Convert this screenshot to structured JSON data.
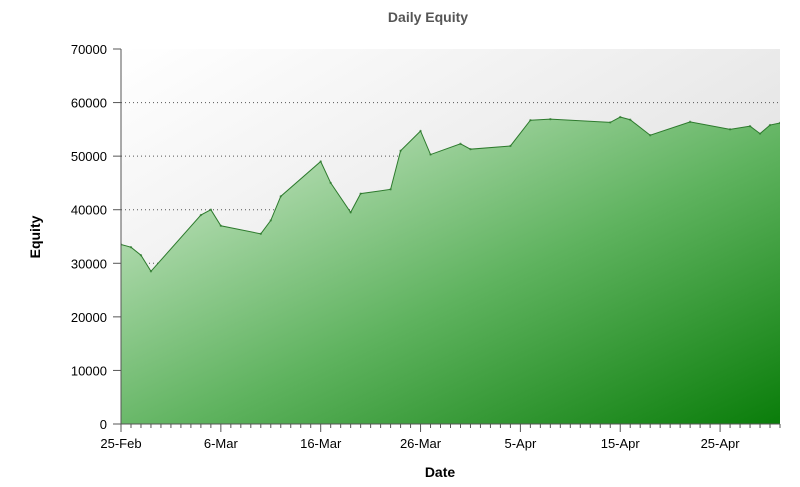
{
  "chart_data": {
    "type": "area",
    "title": "Daily Equity",
    "xlabel": "Date",
    "ylabel": "Equity",
    "ylim": [
      0,
      70000
    ],
    "yticks": [
      0,
      10000,
      20000,
      30000,
      40000,
      50000,
      60000,
      70000
    ],
    "ytick_labels": [
      "0",
      "10000",
      "20000",
      "30000",
      "40000",
      "50000",
      "60000",
      "70000"
    ],
    "xlim": [
      "2000-02-25",
      "2000-05-01"
    ],
    "xticks": [
      "2000-02-25",
      "2000-03-06",
      "2000-03-16",
      "2000-03-26",
      "2000-04-05",
      "2000-04-15",
      "2000-04-25"
    ],
    "xtick_labels": [
      "25-Feb",
      "6-Mar",
      "16-Mar",
      "26-Mar",
      "5-Apr",
      "15-Apr",
      "25-Apr"
    ],
    "grid": "horizontal dotted",
    "fill_color_light": "#d9eed6",
    "fill_color_dark": "#0a7d0a",
    "line_color": "#2d7a2d",
    "series": [
      {
        "points": [
          [
            "2000-02-25",
            33500
          ],
          [
            "2000-02-26",
            33000
          ],
          [
            "2000-02-27",
            31500
          ],
          [
            "2000-02-28",
            28500
          ],
          [
            "2000-03-04",
            39000
          ],
          [
            "2000-03-05",
            40000
          ],
          [
            "2000-03-06",
            37000
          ],
          [
            "2000-03-10",
            35500
          ],
          [
            "2000-03-11",
            38000
          ],
          [
            "2000-03-12",
            42500
          ],
          [
            "2000-03-16",
            49000
          ],
          [
            "2000-03-17",
            45000
          ],
          [
            "2000-03-19",
            39500
          ],
          [
            "2000-03-20",
            43000
          ],
          [
            "2000-03-23",
            43800
          ],
          [
            "2000-03-24",
            51000
          ],
          [
            "2000-03-26",
            54700
          ],
          [
            "2000-03-27",
            50300
          ],
          [
            "2000-03-30",
            52300
          ],
          [
            "2000-03-31",
            51300
          ],
          [
            "2000-04-04",
            51900
          ],
          [
            "2000-04-06",
            56700
          ],
          [
            "2000-04-08",
            56900
          ],
          [
            "2000-04-14",
            56300
          ],
          [
            "2000-04-15",
            57300
          ],
          [
            "2000-04-16",
            56800
          ],
          [
            "2000-04-18",
            53900
          ],
          [
            "2000-04-22",
            56400
          ],
          [
            "2000-04-26",
            55000
          ],
          [
            "2000-04-28",
            55600
          ],
          [
            "2000-04-29",
            54200
          ],
          [
            "2000-04-30",
            55800
          ],
          [
            "2000-05-01",
            56200
          ]
        ]
      }
    ]
  }
}
